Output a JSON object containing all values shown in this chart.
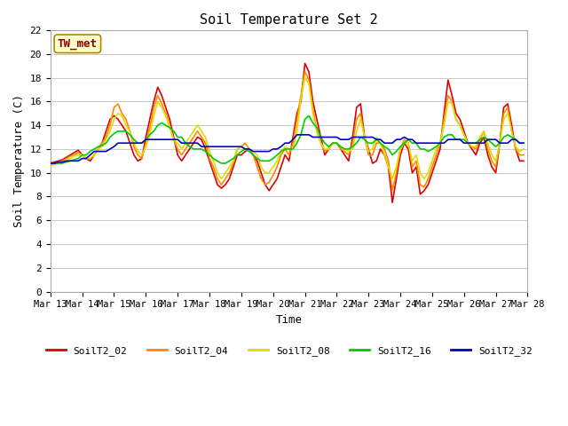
{
  "title": "Soil Temperature Set 2",
  "xlabel": "Time",
  "ylabel": "Soil Temperature (C)",
  "ylim": [
    0,
    22
  ],
  "yticks": [
    0,
    2,
    4,
    6,
    8,
    10,
    12,
    14,
    16,
    18,
    20,
    22
  ],
  "fig_bg_color": "#ffffff",
  "plot_bg_color": "#ffffff",
  "grid_color": "#cccccc",
  "annotation_text": "TW_met",
  "annotation_bg": "#ffffcc",
  "annotation_fg": "#880000",
  "annotation_border": "#aa8800",
  "series_keys": [
    "SoilT2_02",
    "SoilT2_04",
    "SoilT2_08",
    "SoilT2_16",
    "SoilT2_32"
  ],
  "series_colors": {
    "SoilT2_02": "#dd0000",
    "SoilT2_04": "#ff8800",
    "SoilT2_08": "#dddd00",
    "SoilT2_16": "#00cc00",
    "SoilT2_32": "#0000cc"
  },
  "linewidth": 1.2,
  "data": {
    "times_offset_hours": [
      0,
      3,
      6,
      9,
      12,
      15,
      18,
      21,
      24,
      27,
      30,
      33,
      36,
      39,
      42,
      45,
      48,
      51,
      54,
      57,
      60,
      63,
      66,
      69,
      72,
      75,
      78,
      81,
      84,
      87,
      90,
      93,
      96,
      99,
      102,
      105,
      108,
      111,
      114,
      117,
      120,
      123,
      126,
      129,
      132,
      135,
      138,
      141,
      144,
      147,
      150,
      153,
      156,
      159,
      162,
      165,
      168,
      171,
      174,
      177,
      180,
      183,
      186,
      189,
      192,
      195,
      198,
      201,
      204,
      207,
      210,
      213,
      216,
      219,
      222,
      225,
      228,
      231,
      234,
      237,
      240,
      243,
      246,
      249,
      252,
      255,
      258,
      261,
      264,
      267,
      270,
      273,
      276,
      279,
      282,
      285,
      288,
      291,
      294,
      297,
      300,
      303,
      306,
      309,
      312,
      315,
      318,
      321,
      324,
      327,
      330,
      333,
      336,
      339,
      342,
      345,
      348,
      351,
      354,
      357
    ],
    "SoilT2_02": [
      10.8,
      10.9,
      11.0,
      11.1,
      11.3,
      11.5,
      11.7,
      11.9,
      11.5,
      11.2,
      11.0,
      11.5,
      12.0,
      12.5,
      13.5,
      14.5,
      14.8,
      14.5,
      14.0,
      13.5,
      12.5,
      11.5,
      11.0,
      11.2,
      13.0,
      14.5,
      16.0,
      17.2,
      16.5,
      15.5,
      14.5,
      13.0,
      11.5,
      11.0,
      11.5,
      12.0,
      12.5,
      13.0,
      12.8,
      12.0,
      11.0,
      10.0,
      9.0,
      8.7,
      9.0,
      9.5,
      10.5,
      11.5,
      11.5,
      11.8,
      12.0,
      11.5,
      11.0,
      10.0,
      9.0,
      8.5,
      9.0,
      9.5,
      10.5,
      11.5,
      11.0,
      13.0,
      15.0,
      16.0,
      19.2,
      18.5,
      16.0,
      14.5,
      13.0,
      11.5,
      12.0,
      12.5,
      12.5,
      12.0,
      11.5,
      11.0,
      13.0,
      15.5,
      15.8,
      13.0,
      12.0,
      10.8,
      11.0,
      12.0,
      11.5,
      10.5,
      7.5,
      9.5,
      11.5,
      12.5,
      12.0,
      10.0,
      10.5,
      8.2,
      8.5,
      9.0,
      10.0,
      11.0,
      12.0,
      15.0,
      17.8,
      16.5,
      15.0,
      14.5,
      13.5,
      12.5,
      12.0,
      11.5,
      12.5,
      13.0,
      11.5,
      10.5,
      10.0,
      12.5,
      15.5,
      15.8,
      14.0,
      12.0,
      11.0,
      11.0
    ],
    "SoilT2_04": [
      10.7,
      10.8,
      10.9,
      11.0,
      11.2,
      11.4,
      11.5,
      11.7,
      11.5,
      11.2,
      11.2,
      11.5,
      12.0,
      12.5,
      13.0,
      14.0,
      15.5,
      15.8,
      15.0,
      14.5,
      13.5,
      12.2,
      11.5,
      11.2,
      12.5,
      13.8,
      15.5,
      16.5,
      15.8,
      15.0,
      14.0,
      12.8,
      12.0,
      11.5,
      12.0,
      12.5,
      13.0,
      13.5,
      13.0,
      12.5,
      11.2,
      10.5,
      9.5,
      9.0,
      9.5,
      10.0,
      10.8,
      12.0,
      12.2,
      12.5,
      12.0,
      11.5,
      10.5,
      9.5,
      9.0,
      9.2,
      9.8,
      10.5,
      11.5,
      12.0,
      11.5,
      12.5,
      14.5,
      16.5,
      18.5,
      17.8,
      15.5,
      13.5,
      12.5,
      11.8,
      12.0,
      12.5,
      12.5,
      12.0,
      11.8,
      11.5,
      12.5,
      14.5,
      15.0,
      13.0,
      11.5,
      11.5,
      12.5,
      12.5,
      12.0,
      11.0,
      8.5,
      10.0,
      12.0,
      12.8,
      12.5,
      10.5,
      11.0,
      9.0,
      8.8,
      9.5,
      10.5,
      11.5,
      12.5,
      14.5,
      16.5,
      16.0,
      14.5,
      14.0,
      13.2,
      12.5,
      12.2,
      12.0,
      12.8,
      13.5,
      12.0,
      11.0,
      10.5,
      12.5,
      15.0,
      15.5,
      13.5,
      12.0,
      11.5,
      11.5
    ],
    "SoilT2_08": [
      10.6,
      10.7,
      10.8,
      10.9,
      11.0,
      11.2,
      11.4,
      11.5,
      11.5,
      11.2,
      11.2,
      11.5,
      12.0,
      12.2,
      12.8,
      13.5,
      14.5,
      15.0,
      14.8,
      14.0,
      13.5,
      12.5,
      11.8,
      11.5,
      12.2,
      13.2,
      14.8,
      16.0,
      15.5,
      14.8,
      13.8,
      12.8,
      12.5,
      12.0,
      12.5,
      13.0,
      13.5,
      14.0,
      13.5,
      13.0,
      11.8,
      11.0,
      10.0,
      9.5,
      10.0,
      10.5,
      11.0,
      12.0,
      12.2,
      12.0,
      12.0,
      11.8,
      11.5,
      10.5,
      10.0,
      10.0,
      10.5,
      11.0,
      11.8,
      12.2,
      12.0,
      12.0,
      13.5,
      16.2,
      18.0,
      17.5,
      15.0,
      13.5,
      12.5,
      12.0,
      12.0,
      12.5,
      12.5,
      12.2,
      12.0,
      11.8,
      12.0,
      13.5,
      14.5,
      13.0,
      11.8,
      12.0,
      13.0,
      12.5,
      11.5,
      10.5,
      9.5,
      10.5,
      12.0,
      12.5,
      12.5,
      11.0,
      11.5,
      10.0,
      9.5,
      10.0,
      11.0,
      12.0,
      12.5,
      14.0,
      16.0,
      15.8,
      14.5,
      14.0,
      13.2,
      12.5,
      12.2,
      12.2,
      13.0,
      13.5,
      12.5,
      11.5,
      11.0,
      12.5,
      14.5,
      15.0,
      13.5,
      12.2,
      11.8,
      12.0
    ],
    "SoilT2_16": [
      10.8,
      10.8,
      10.8,
      10.8,
      10.9,
      11.0,
      11.1,
      11.2,
      11.5,
      11.5,
      11.8,
      12.0,
      12.2,
      12.3,
      12.5,
      13.0,
      13.3,
      13.5,
      13.5,
      13.5,
      13.2,
      12.8,
      12.5,
      12.5,
      12.8,
      13.2,
      13.5,
      14.0,
      14.2,
      14.0,
      13.8,
      13.5,
      13.0,
      13.0,
      12.5,
      12.2,
      12.0,
      12.0,
      12.0,
      11.8,
      11.5,
      11.2,
      11.0,
      10.8,
      10.8,
      11.0,
      11.2,
      11.5,
      11.8,
      12.0,
      11.8,
      11.5,
      11.2,
      11.0,
      11.0,
      11.0,
      11.2,
      11.5,
      11.8,
      12.0,
      12.0,
      12.0,
      12.5,
      13.2,
      14.5,
      14.8,
      14.2,
      13.8,
      13.0,
      12.5,
      12.2,
      12.5,
      12.5,
      12.2,
      12.0,
      12.0,
      12.2,
      12.5,
      13.0,
      12.8,
      12.5,
      12.5,
      12.8,
      12.5,
      12.2,
      12.0,
      11.5,
      11.8,
      12.2,
      12.5,
      12.8,
      12.5,
      12.5,
      12.0,
      12.0,
      11.8,
      12.0,
      12.2,
      12.5,
      13.0,
      13.2,
      13.2,
      12.8,
      12.8,
      12.8,
      12.5,
      12.5,
      12.5,
      12.8,
      13.0,
      12.8,
      12.5,
      12.2,
      12.5,
      13.0,
      13.2,
      13.0,
      12.8,
      12.5,
      12.5
    ],
    "SoilT2_32": [
      10.8,
      10.8,
      10.9,
      10.9,
      11.0,
      11.0,
      11.0,
      11.0,
      11.2,
      11.2,
      11.5,
      11.8,
      11.8,
      11.8,
      11.8,
      12.0,
      12.2,
      12.5,
      12.5,
      12.5,
      12.5,
      12.5,
      12.5,
      12.5,
      12.8,
      12.8,
      12.8,
      12.8,
      12.8,
      12.8,
      12.8,
      12.8,
      12.8,
      12.5,
      12.5,
      12.5,
      12.5,
      12.5,
      12.2,
      12.2,
      12.2,
      12.2,
      12.2,
      12.2,
      12.2,
      12.2,
      12.2,
      12.2,
      12.2,
      12.0,
      12.0,
      11.8,
      11.8,
      11.8,
      11.8,
      11.8,
      12.0,
      12.0,
      12.2,
      12.5,
      12.5,
      12.8,
      13.2,
      13.2,
      13.2,
      13.2,
      13.0,
      13.0,
      13.0,
      13.0,
      13.0,
      13.0,
      13.0,
      12.8,
      12.8,
      12.8,
      13.0,
      13.0,
      13.0,
      13.0,
      13.0,
      13.0,
      12.8,
      12.8,
      12.5,
      12.5,
      12.5,
      12.8,
      12.8,
      13.0,
      12.8,
      12.8,
      12.5,
      12.5,
      12.5,
      12.5,
      12.5,
      12.5,
      12.5,
      12.5,
      12.8,
      12.8,
      12.8,
      12.8,
      12.5,
      12.5,
      12.5,
      12.5,
      12.5,
      12.5,
      12.8,
      12.8,
      12.8,
      12.5,
      12.5,
      12.5,
      12.8,
      12.8,
      12.5,
      12.5
    ]
  }
}
